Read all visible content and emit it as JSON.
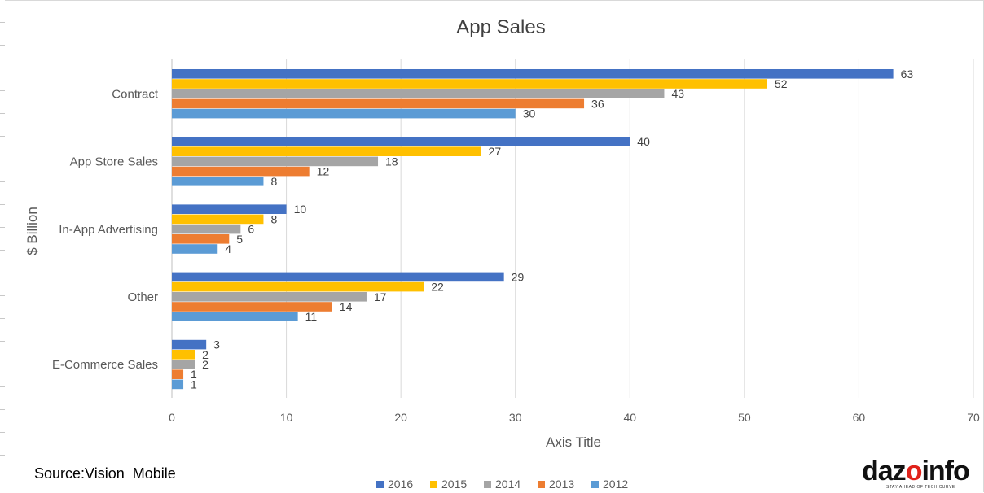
{
  "chart_data": {
    "type": "bar",
    "orientation": "horizontal",
    "title": "App Sales",
    "xlabel": "Axis Title",
    "ylabel": "$ Billion",
    "xlim": [
      0,
      70
    ],
    "x_ticks": [
      0,
      10,
      20,
      30,
      40,
      50,
      60,
      70
    ],
    "grid": "vertical",
    "legend_position": "bottom",
    "categories": [
      "Contract",
      "App Store Sales",
      "In-App Advertising",
      "Other",
      "E-Commerce Sales"
    ],
    "series": [
      {
        "name": "2016",
        "color": "#4472C4",
        "values": [
          63,
          40,
          10,
          29,
          3
        ]
      },
      {
        "name": "2015",
        "color": "#FFC000",
        "values": [
          52,
          27,
          8,
          22,
          2
        ]
      },
      {
        "name": "2014",
        "color": "#A5A5A5",
        "values": [
          43,
          18,
          6,
          17,
          2
        ]
      },
      {
        "name": "2013",
        "color": "#ED7D31",
        "values": [
          36,
          12,
          5,
          14,
          1
        ]
      },
      {
        "name": "2012",
        "color": "#5B9BD5",
        "values": [
          30,
          8,
          4,
          11,
          1
        ]
      }
    ]
  },
  "source_note": "Source:Vision  Mobile",
  "logo": {
    "prefix": "daz",
    "accent": "o",
    "suffix": "info",
    "tagline": "STAY AHEAD OF TECH CURVE"
  }
}
